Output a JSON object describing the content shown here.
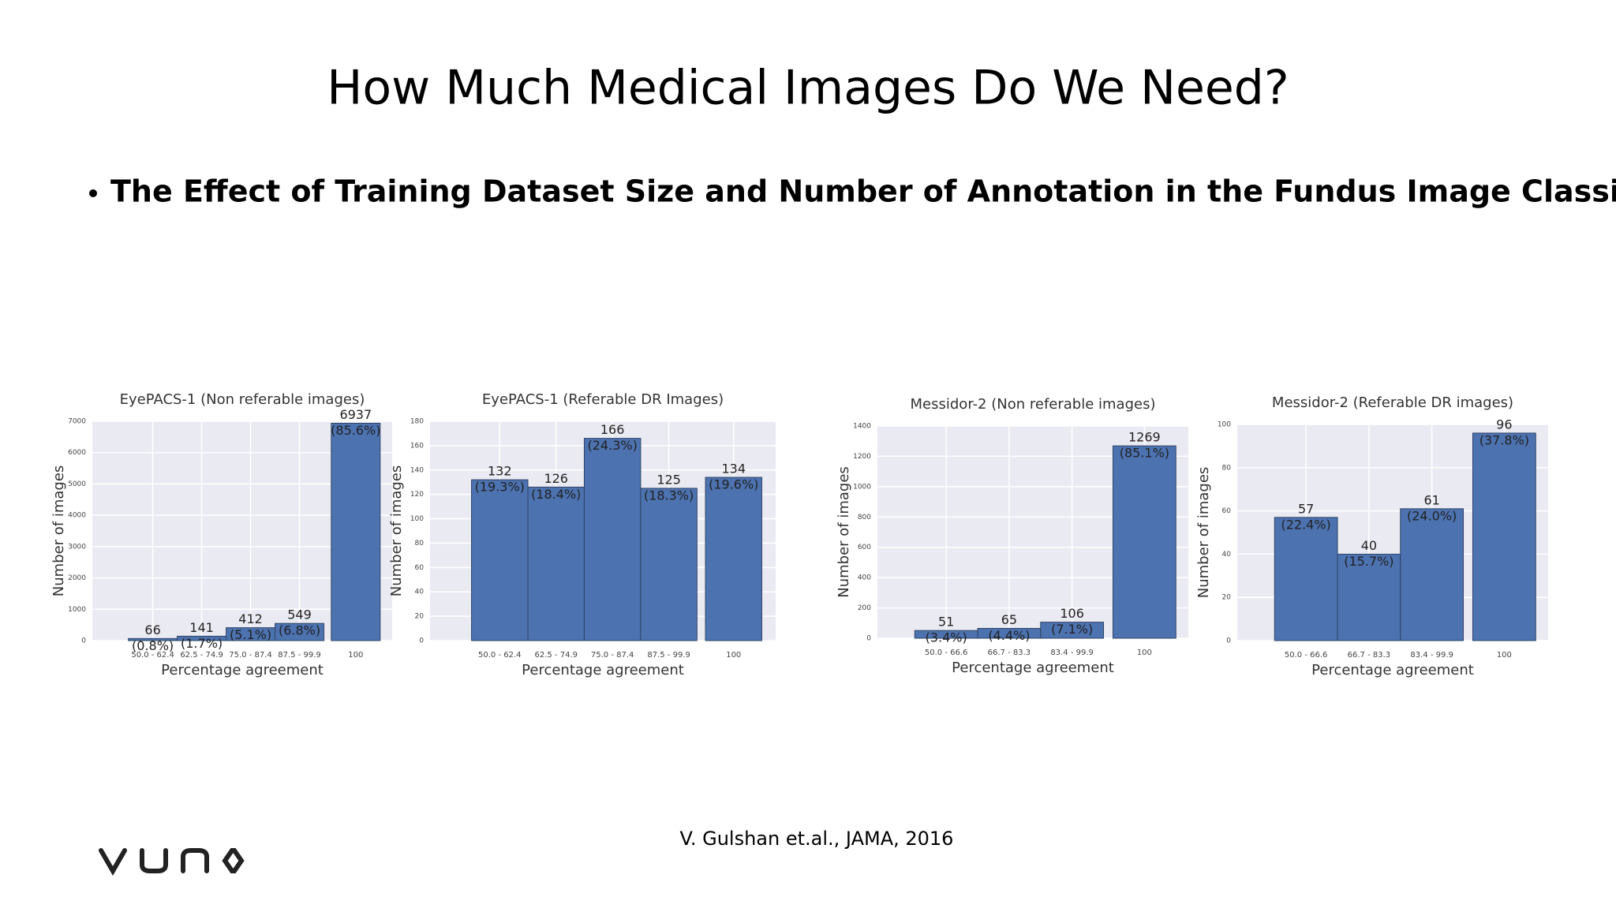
{
  "title": "How Much Medical Images Do We Need?",
  "bullet": "The Effect of Training Dataset Size and Number of Annotation in the Fundus Image Classification",
  "citation": "V. Gulshan et.al., JAMA, 2016",
  "chart_data": [
    {
      "type": "bar",
      "title": "EyePACS-1 (Non referable images)",
      "x_label": "Percentage agreement",
      "y_label": "Number of images",
      "categories": [
        "50.0 - 62.4",
        "62.5 - 74.9",
        "75.0 - 87.4",
        "87.5 - 99.9",
        "100"
      ],
      "values": [
        66,
        141,
        412,
        549,
        6937
      ],
      "percent_labels": [
        "(0.8%)",
        "(1.7%)",
        "(5.1%)",
        "(6.8%)",
        "(85.6%)"
      ],
      "color": "#4c72b0",
      "ylim": [
        0,
        7000
      ],
      "yticks": [
        0,
        1000,
        2000,
        3000,
        4000,
        5000,
        6000,
        7000
      ],
      "grid": true
    },
    {
      "type": "bar",
      "title": "EyePACS-1 (Referable DR Images)",
      "x_label": "Percentage agreement",
      "y_label": "Number of images",
      "categories": [
        "50.0 - 62.4",
        "62.5 - 74.9",
        "75.0 - 87.4",
        "87.5 - 99.9",
        "100"
      ],
      "values": [
        132,
        126,
        166,
        125,
        134
      ],
      "percent_labels": [
        "(19.3%)",
        "(18.4%)",
        "(24.3%)",
        "(18.3%)",
        "(19.6%)"
      ],
      "color": "#4c72b0",
      "ylim": [
        0,
        180
      ],
      "yticks": [
        0,
        20,
        40,
        60,
        80,
        100,
        120,
        140,
        160,
        180
      ],
      "grid": true
    },
    {
      "type": "bar",
      "title": "Messidor-2 (Non referable images)",
      "x_label": "Percentage agreement",
      "y_label": "Number of images",
      "categories": [
        "50.0 - 66.6",
        "66.7 - 83.3",
        "83.4 - 99.9",
        "100"
      ],
      "values": [
        51,
        65,
        106,
        1269
      ],
      "percent_labels": [
        "(3.4%)",
        "(4.4%)",
        "(7.1%)",
        "(85.1%)"
      ],
      "color": "#4c72b0",
      "ylim": [
        0,
        1400
      ],
      "yticks": [
        0,
        200,
        400,
        600,
        800,
        1000,
        1200,
        1400
      ],
      "grid": true
    },
    {
      "type": "bar",
      "title": "Messidor-2 (Referable DR images)",
      "x_label": "Percentage agreement",
      "y_label": "Number of images",
      "categories": [
        "50.0 - 66.6",
        "66.7 - 83.3",
        "83.4 - 99.9",
        "100"
      ],
      "values": [
        57,
        40,
        61,
        96
      ],
      "percent_labels": [
        "(22.4%)",
        "(15.7%)",
        "(24.0%)",
        "(37.8%)"
      ],
      "color": "#4c72b0",
      "ylim": [
        0,
        100
      ],
      "yticks": [
        0,
        20,
        40,
        60,
        80,
        100
      ],
      "grid": true
    }
  ]
}
